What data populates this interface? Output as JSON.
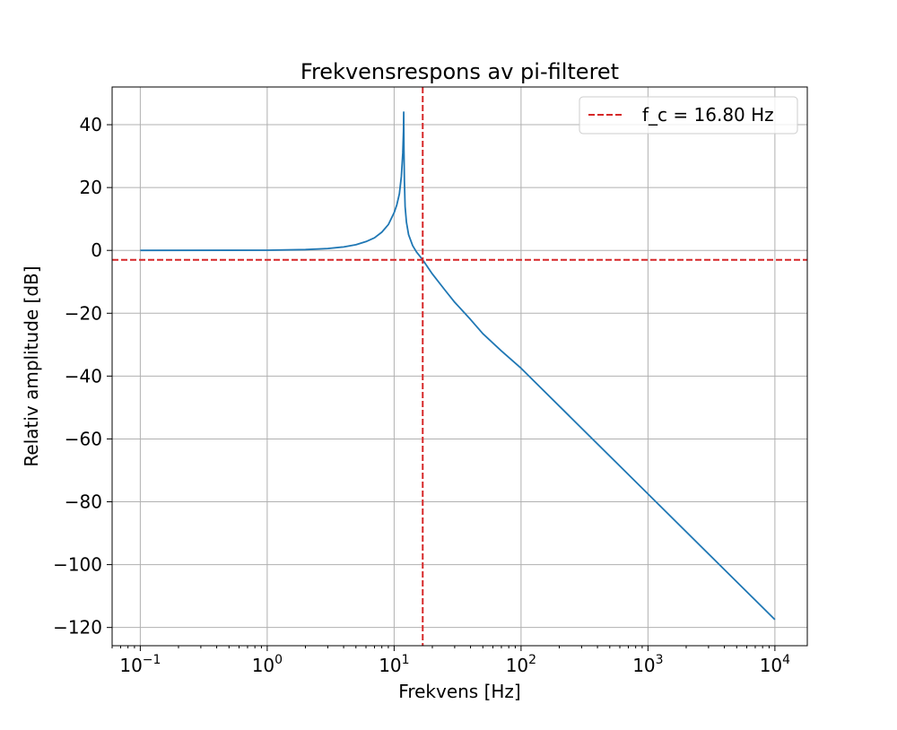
{
  "chart_data": {
    "type": "line",
    "title": "Frekvensrespons av pi-filteret",
    "xlabel": "Frekvens [Hz]",
    "ylabel": "Relativ amplitude [dB]",
    "xscale": "log",
    "xlim": [
      0.06,
      18000
    ],
    "ylim": [
      -125.8,
      52
    ],
    "grid": true,
    "legend_position": "upper right",
    "x_ticks": [
      {
        "base": "10",
        "exp": "−1",
        "value": 0.1
      },
      {
        "base": "10",
        "exp": "0",
        "value": 1
      },
      {
        "base": "10",
        "exp": "1",
        "value": 10
      },
      {
        "base": "10",
        "exp": "2",
        "value": 100
      },
      {
        "base": "10",
        "exp": "3",
        "value": 1000
      },
      {
        "base": "10",
        "exp": "4",
        "value": 10000
      }
    ],
    "y_ticks": [
      {
        "label": "40",
        "value": 40
      },
      {
        "label": "20",
        "value": 20
      },
      {
        "label": "0",
        "value": 0
      },
      {
        "label": "−20",
        "value": -20
      },
      {
        "label": "−40",
        "value": -40
      },
      {
        "label": "−60",
        "value": -60
      },
      {
        "label": "−80",
        "value": -80
      },
      {
        "label": "−100",
        "value": -100
      },
      {
        "label": "−120",
        "value": -120
      }
    ],
    "series": [
      {
        "color": "#1f77b4",
        "x": [
          0.1,
          1,
          2,
          3,
          4,
          5,
          6,
          7,
          8,
          9,
          10,
          10.5,
          11,
          11.4,
          11.7,
          11.85,
          11.9,
          11.95,
          12.05,
          12.2,
          12.5,
          13,
          14,
          15,
          16.8,
          20,
          25,
          30,
          40,
          50,
          70,
          100,
          1000,
          10000
        ],
        "y": [
          0,
          0.05,
          0.25,
          0.6,
          1.1,
          1.8,
          2.8,
          4.0,
          5.8,
          8.2,
          12.0,
          14.5,
          18.0,
          23.5,
          31.0,
          38.0,
          44.0,
          32.0,
          22.0,
          14.0,
          9.0,
          5.0,
          1.5,
          -0.5,
          -3.0,
          -7.5,
          -12.5,
          -16.5,
          -22.0,
          -26.5,
          -32.0,
          -37.5,
          -77.5,
          -117.5
        ]
      }
    ],
    "reference_lines": [
      {
        "type": "vertical",
        "x": 16.8,
        "color": "#d62728",
        "style": "dashed",
        "label": "f_c = 16.80 Hz"
      },
      {
        "type": "horizontal",
        "y": -3,
        "color": "#d62728",
        "style": "dashed"
      }
    ],
    "legend": [
      {
        "label": "f_c = 16.80 Hz",
        "color": "#d62728",
        "style": "dashed"
      }
    ]
  }
}
